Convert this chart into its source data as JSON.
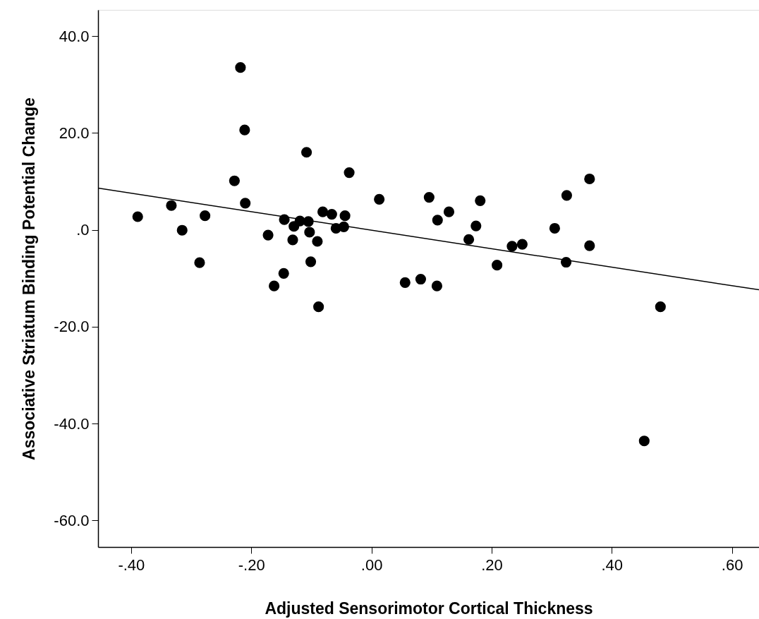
{
  "chart_data": {
    "type": "scatter",
    "xlabel": "Adjusted Sensorimotor Cortical Thickness",
    "ylabel": "Associative Striatum Binding Potential Change",
    "xlim": [
      -0.455,
      0.645
    ],
    "ylim": [
      -65.5,
      45.4
    ],
    "xticks": [
      {
        "value": -0.4,
        "label": "-.40"
      },
      {
        "value": -0.2,
        "label": "-.20"
      },
      {
        "value": 0,
        "label": ".00"
      },
      {
        "value": 0.2,
        "label": ".20"
      },
      {
        "value": 0.4,
        "label": ".40"
      },
      {
        "value": 0.6,
        "label": ".60"
      }
    ],
    "yticks": [
      {
        "value": -60,
        "label": "-60.0"
      },
      {
        "value": -40,
        "label": "-40.0"
      },
      {
        "value": -20,
        "label": "-20.0"
      },
      {
        "value": 0,
        "label": ".0"
      },
      {
        "value": 20,
        "label": "20.0"
      },
      {
        "value": 40,
        "label": "40.0"
      }
    ],
    "grid": false,
    "marker": "circle",
    "series": [
      {
        "color": "#000000",
        "x": [
          -0.389,
          -0.333,
          -0.315,
          -0.277,
          -0.286,
          -0.218,
          -0.211,
          -0.228,
          -0.21,
          -0.108,
          -0.037,
          -0.172,
          -0.145,
          -0.129,
          -0.119,
          -0.105,
          -0.131,
          -0.103,
          -0.09,
          -0.081,
          -0.066,
          -0.044,
          -0.059,
          -0.046,
          -0.101,
          -0.146,
          -0.162,
          -0.088,
          0.013,
          0.096,
          0.11,
          0.129,
          0.181,
          0.174,
          0.162,
          0.234,
          0.251,
          0.209,
          0.305,
          0.325,
          0.363,
          0.363,
          0.324,
          0.056,
          0.082,
          0.109,
          0.481,
          0.454
        ],
        "values": [
          2.7,
          5.0,
          -0.1,
          2.9,
          -6.8,
          33.5,
          20.6,
          10.1,
          5.5,
          16.0,
          11.8,
          -1.1,
          2.1,
          0.7,
          1.8,
          1.7,
          -2.1,
          -0.5,
          -2.4,
          3.7,
          3.2,
          2.9,
          0.3,
          0.6,
          -6.6,
          -9.0,
          -11.6,
          -15.9,
          6.3,
          6.7,
          2.0,
          3.7,
          6.0,
          0.8,
          -2.0,
          -3.4,
          -3.0,
          -7.3,
          0.3,
          7.1,
          10.5,
          -3.3,
          -6.7,
          -10.9,
          -10.2,
          -11.6,
          -15.9,
          -43.6
        ]
      },
      {
        "type": "line",
        "color": "#000000",
        "marker": "none",
        "line_style": "solid",
        "x": [
          -0.455,
          0.645
        ],
        "values": [
          8.6,
          -12.4
        ]
      }
    ]
  }
}
